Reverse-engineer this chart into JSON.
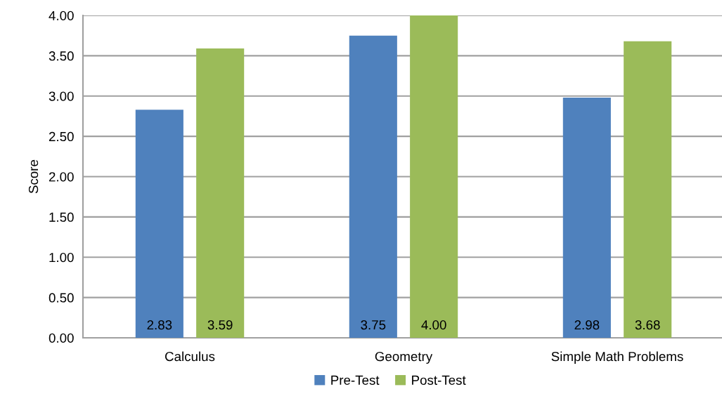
{
  "chart_data": {
    "type": "bar",
    "ylabel": "Score",
    "categories": [
      "Calculus",
      "Geometry",
      "Simple Math Problems"
    ],
    "series": [
      {
        "name": "Pre-Test",
        "color": "#4f81bd",
        "values": [
          2.83,
          3.75,
          2.98
        ],
        "value_labels": [
          "2.83",
          "3.75",
          "2.98"
        ]
      },
      {
        "name": "Post-Test",
        "color": "#9bbb59",
        "values": [
          3.59,
          4.0,
          3.68
        ],
        "value_labels": [
          "3.59",
          "4.00",
          "3.68"
        ]
      }
    ],
    "ylim": [
      0,
      4
    ],
    "yticks": [
      {
        "value": 0,
        "label": "0.00"
      },
      {
        "value": 0.5,
        "label": "0.50"
      },
      {
        "value": 1,
        "label": "1.00"
      },
      {
        "value": 1.5,
        "label": "1.50"
      },
      {
        "value": 2,
        "label": "2.00"
      },
      {
        "value": 2.5,
        "label": "2.50"
      },
      {
        "value": 3,
        "label": "3.00"
      },
      {
        "value": 3.5,
        "label": "3.50"
      },
      {
        "value": 4,
        "label": "4.00"
      }
    ],
    "grid": "y",
    "legend": "bottom"
  }
}
